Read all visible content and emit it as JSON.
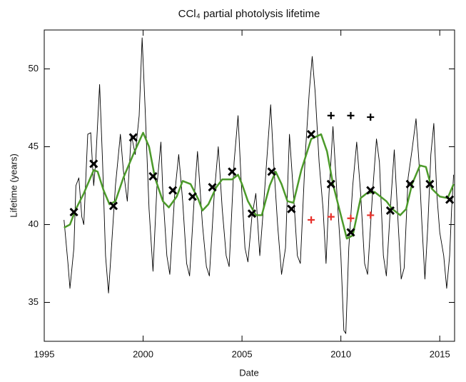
{
  "chart_data": {
    "type": "line",
    "title": "CCl₄ partial photolysis lifetime",
    "x_label": "Date",
    "y_label": "Lifetime (years)",
    "xlim": [
      1995,
      2015.75
    ],
    "ylim": [
      32.5,
      52.5
    ],
    "xticks": [
      1995,
      2000,
      2005,
      2010,
      2015
    ],
    "yticks": [
      35,
      40,
      45,
      50
    ],
    "series": [
      {
        "color": "#000000",
        "marker": "none",
        "width": 0.9,
        "x": [
          1996.0,
          1996.2,
          1996.3,
          1996.5,
          1996.6,
          1996.75,
          1996.9,
          1997.0,
          1997.2,
          1997.35,
          1997.5,
          1997.6,
          1997.8,
          1997.95,
          1998.1,
          1998.25,
          1998.6,
          1998.85,
          1999.0,
          1999.2,
          1999.4,
          1999.6,
          1999.8,
          1999.95,
          2000.1,
          2000.3,
          2000.5,
          2000.7,
          2000.9,
          2001.0,
          2001.2,
          2001.35,
          2001.6,
          2001.8,
          2002.0,
          2002.2,
          2002.35,
          2002.6,
          2002.75,
          2003.0,
          2003.2,
          2003.35,
          2003.6,
          2003.8,
          2004.0,
          2004.2,
          2004.35,
          2004.6,
          2004.8,
          2004.95,
          2005.15,
          2005.3,
          2005.5,
          2005.7,
          2005.9,
          2006.05,
          2006.3,
          2006.45,
          2006.6,
          2006.8,
          2007.0,
          2007.2,
          2007.4,
          2007.6,
          2007.8,
          2007.95,
          2008.2,
          2008.4,
          2008.55,
          2008.7,
          2008.9,
          2009.1,
          2009.25,
          2009.4,
          2009.6,
          2009.8,
          2010.0,
          2010.15,
          2010.25,
          2010.4,
          2010.6,
          2010.8,
          2011.0,
          2011.2,
          2011.35,
          2011.6,
          2011.8,
          2011.95,
          2012.15,
          2012.3,
          2012.5,
          2012.7,
          2012.9,
          2013.05,
          2013.2,
          2013.4,
          2013.6,
          2013.8,
          2013.95,
          2014.1,
          2014.25,
          2014.4,
          2014.55,
          2014.7,
          2014.85,
          2015.0,
          2015.2,
          2015.35,
          2015.5,
          2015.6,
          2015.7
        ],
        "values": [
          40.3,
          37.5,
          35.9,
          38.5,
          42.5,
          43.0,
          40.5,
          40.0,
          45.8,
          45.9,
          42.5,
          44.0,
          49.0,
          44.0,
          38.0,
          35.6,
          42.5,
          45.8,
          43.5,
          41.5,
          45.8,
          44.5,
          47.0,
          52.0,
          47.5,
          41.0,
          37.0,
          42.5,
          45.3,
          42.0,
          38.0,
          36.8,
          42.0,
          44.5,
          41.5,
          37.5,
          36.7,
          42.0,
          44.7,
          40.0,
          37.3,
          36.7,
          42.0,
          45.0,
          41.0,
          38.0,
          37.3,
          44.0,
          47.0,
          43.0,
          38.5,
          37.6,
          40.5,
          42.0,
          38.0,
          40.5,
          45.0,
          47.7,
          44.0,
          40.0,
          36.8,
          38.5,
          45.8,
          42.0,
          38.0,
          37.5,
          44.5,
          48.5,
          50.8,
          48.5,
          44.0,
          41.0,
          37.5,
          42.0,
          46.3,
          42.0,
          38.0,
          33.2,
          33.0,
          38.5,
          42.5,
          45.3,
          42.0,
          37.5,
          36.8,
          42.0,
          45.5,
          44.0,
          38.0,
          36.7,
          41.0,
          44.8,
          40.0,
          36.5,
          37.2,
          43.0,
          44.8,
          46.8,
          44.0,
          40.0,
          36.5,
          40.0,
          44.5,
          46.5,
          42.0,
          39.5,
          38.0,
          35.9,
          38.0,
          41.0,
          43.2
        ]
      },
      {
        "color": "#4c9a2a",
        "marker": "none",
        "width": 2.5,
        "x": [
          1996.0,
          1996.3,
          1996.6,
          1997.0,
          1997.5,
          1997.7,
          1998.0,
          1998.3,
          1998.6,
          1999.0,
          1999.5,
          2000.0,
          2000.3,
          2000.6,
          2001.0,
          2001.3,
          2001.7,
          2002.0,
          2002.4,
          2002.8,
          2003.0,
          2003.3,
          2003.7,
          2004.0,
          2004.5,
          2004.8,
          2005.0,
          2005.3,
          2005.7,
          2006.0,
          2006.4,
          2006.7,
          2007.0,
          2007.3,
          2007.6,
          2008.0,
          2008.5,
          2009.0,
          2009.3,
          2009.6,
          2010.0,
          2010.3,
          2010.6,
          2011.0,
          2011.3,
          2011.7,
          2012.0,
          2012.3,
          2012.6,
          2013.0,
          2013.3,
          2013.6,
          2014.0,
          2014.3,
          2014.6,
          2015.0,
          2015.4,
          2015.7
        ],
        "values": [
          39.8,
          40.0,
          41.0,
          42.0,
          43.5,
          43.4,
          42.2,
          41.3,
          41.5,
          43.0,
          44.5,
          45.9,
          45.0,
          43.0,
          41.5,
          41.1,
          41.8,
          42.8,
          42.6,
          41.6,
          40.9,
          41.3,
          42.4,
          42.9,
          42.9,
          43.2,
          42.6,
          41.5,
          40.6,
          40.6,
          42.5,
          43.4,
          42.6,
          41.5,
          41.4,
          43.5,
          45.5,
          45.8,
          44.7,
          42.6,
          40.6,
          39.1,
          39.3,
          41.7,
          42.0,
          42.1,
          41.8,
          41.5,
          41.0,
          40.6,
          41.0,
          42.6,
          43.8,
          43.7,
          42.3,
          41.8,
          41.7,
          42.6
        ]
      },
      {
        "color": "#000000",
        "marker": "x",
        "x": [
          1996.5,
          1997.5,
          1998.5,
          1999.5,
          2000.5,
          2001.5,
          2002.5,
          2003.5,
          2004.5,
          2005.5,
          2006.5,
          2007.5,
          2008.5,
          2009.5,
          2010.5,
          2011.5,
          2012.5,
          2013.5,
          2014.5,
          2015.5
        ],
        "values": [
          40.8,
          43.9,
          41.2,
          45.6,
          43.1,
          42.2,
          41.8,
          42.4,
          43.4,
          40.7,
          43.4,
          41.0,
          45.8,
          42.6,
          39.5,
          42.2,
          40.9,
          42.6,
          42.6,
          41.6
        ]
      },
      {
        "color": "#000000",
        "marker": "+",
        "x": [
          2009.5,
          2010.5,
          2011.5
        ],
        "values": [
          47.0,
          47.0,
          46.9
        ]
      },
      {
        "color": "#e8302a",
        "marker": "+",
        "x": [
          2008.5,
          2009.5,
          2010.5,
          2011.5
        ],
        "values": [
          40.3,
          40.5,
          40.4,
          40.6
        ]
      }
    ]
  }
}
